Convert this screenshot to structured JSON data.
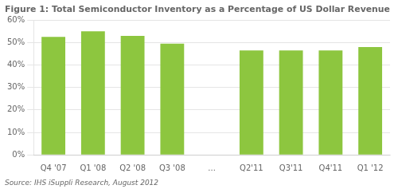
{
  "chart_data": {
    "type": "bar",
    "title": "Figure 1: Total Semiconductor Inventory as a Percentage of US Dollar Revenue",
    "categories": [
      "Q4 '07",
      "Q1 '08",
      "Q2 '08",
      "Q3 '08",
      "...",
      "Q2'11",
      "Q3'11",
      "Q4'11",
      "Q1 '12"
    ],
    "values": [
      52.5,
      55.0,
      53.0,
      49.5,
      null,
      46.5,
      46.5,
      46.5,
      48.0
    ],
    "color": "#8dc63f",
    "ylim": [
      0,
      60
    ],
    "yticks": [
      {
        "value": 0,
        "label": "0%"
      },
      {
        "value": 10,
        "label": "10%"
      },
      {
        "value": 20,
        "label": "20%"
      },
      {
        "value": 30,
        "label": "30%"
      },
      {
        "value": 40,
        "label": "40%"
      },
      {
        "value": 50,
        "label": "50%"
      },
      {
        "value": 60,
        "label": "60%"
      }
    ],
    "grid": true,
    "source": "Source: IHS iSuppli Research, August 2012"
  }
}
